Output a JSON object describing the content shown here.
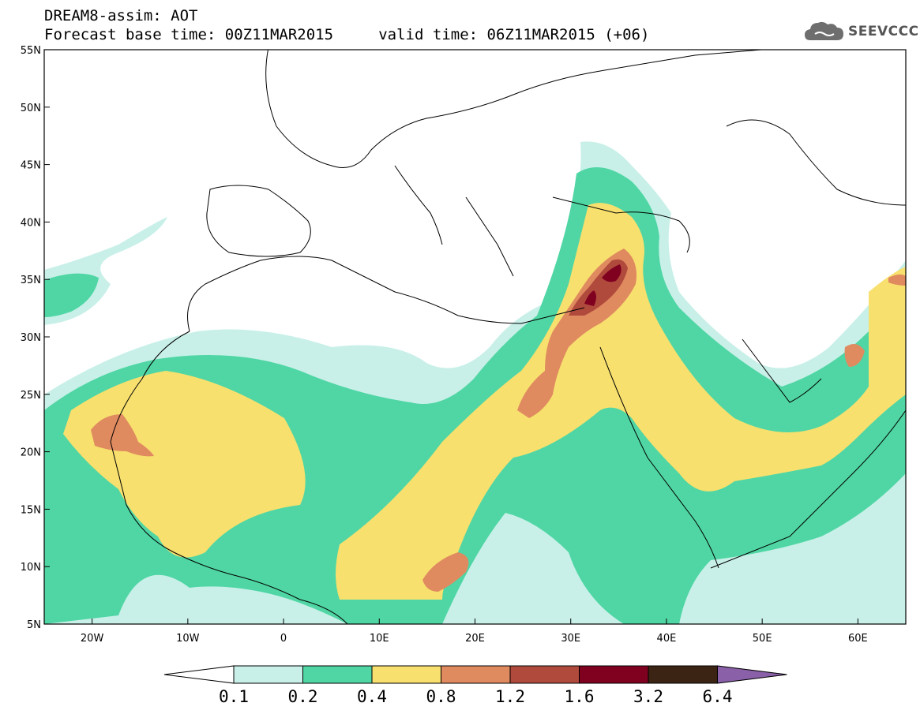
{
  "title": {
    "line1": "DREAM8-assim: AOT",
    "line2": "Forecast base time: 00Z11MAR2015     valid time: 06Z11MAR2015 (+06)"
  },
  "logo": {
    "text": "SEEVCCC",
    "icon": "cloud-icon"
  },
  "map": {
    "lon_range": [
      -25,
      65
    ],
    "lat_range": [
      5,
      55
    ],
    "lat_ticks": [
      "55N",
      "50N",
      "45N",
      "40N",
      "35N",
      "30N",
      "25N",
      "20N",
      "15N",
      "10N",
      "5N"
    ],
    "lon_ticks": [
      "20W",
      "10W",
      "0",
      "10E",
      "20E",
      "30E",
      "40E",
      "50E",
      "60E"
    ]
  },
  "colorbar": {
    "labels": [
      "0.1",
      "0.2",
      "0.4",
      "0.8",
      "1.2",
      "1.6",
      "3.2",
      "6.4"
    ],
    "colors": [
      "#c8f0e8",
      "#4fd6a4",
      "#f7e06e",
      "#e08a60",
      "#b04a3c",
      "#800020",
      "#3c2414",
      "#8a60a8"
    ]
  }
}
